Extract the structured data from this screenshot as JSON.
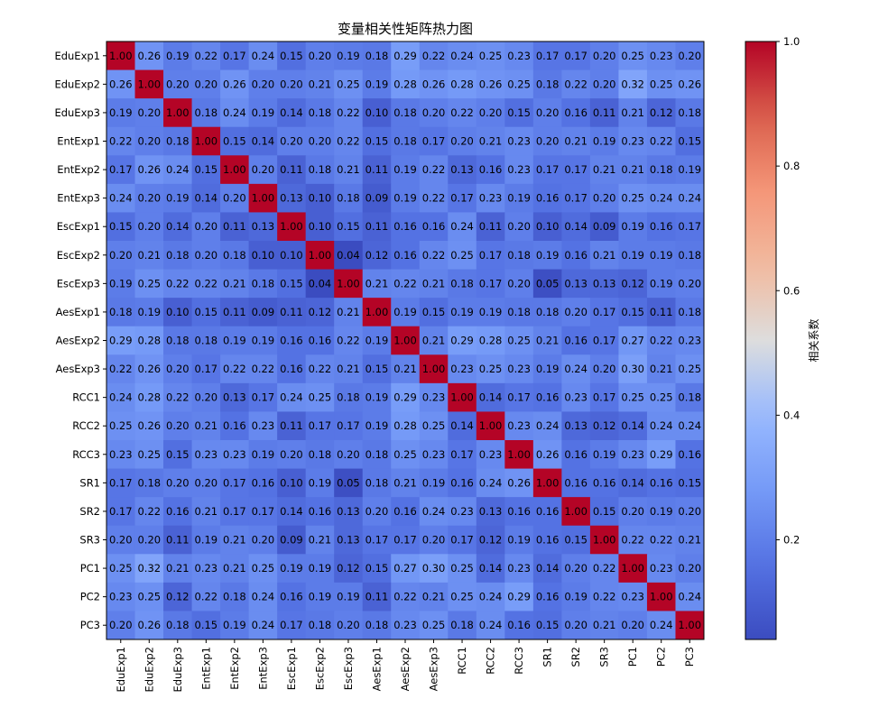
{
  "chart_data": {
    "type": "heatmap",
    "title": "变量相关性矩阵热力图",
    "variables": [
      "EduExp1",
      "EduExp2",
      "EduExp3",
      "EntExp1",
      "EntExp2",
      "EntExp3",
      "EscExp1",
      "EscExp2",
      "EscExp3",
      "AesExp1",
      "AesExp2",
      "AesExp3",
      "RCC1",
      "RCC2",
      "RCC3",
      "SR1",
      "SR2",
      "SR3",
      "PC1",
      "PC2",
      "PC3"
    ],
    "matrix": [
      [
        1.0,
        0.26,
        0.19,
        0.22,
        0.17,
        0.24,
        0.15,
        0.2,
        0.19,
        0.18,
        0.29,
        0.22,
        0.24,
        0.25,
        0.23,
        0.17,
        0.17,
        0.2,
        0.25,
        0.23,
        0.2
      ],
      [
        0.26,
        1.0,
        0.2,
        0.2,
        0.26,
        0.2,
        0.2,
        0.21,
        0.25,
        0.19,
        0.28,
        0.26,
        0.28,
        0.26,
        0.25,
        0.18,
        0.22,
        0.2,
        0.32,
        0.25,
        0.26
      ],
      [
        0.19,
        0.2,
        1.0,
        0.18,
        0.24,
        0.19,
        0.14,
        0.18,
        0.22,
        0.1,
        0.18,
        0.2,
        0.22,
        0.2,
        0.15,
        0.2,
        0.16,
        0.11,
        0.21,
        0.12,
        0.18
      ],
      [
        0.22,
        0.2,
        0.18,
        1.0,
        0.15,
        0.14,
        0.2,
        0.2,
        0.22,
        0.15,
        0.18,
        0.17,
        0.2,
        0.21,
        0.23,
        0.2,
        0.21,
        0.19,
        0.23,
        0.22,
        0.15
      ],
      [
        0.17,
        0.26,
        0.24,
        0.15,
        1.0,
        0.2,
        0.11,
        0.18,
        0.21,
        0.11,
        0.19,
        0.22,
        0.13,
        0.16,
        0.23,
        0.17,
        0.17,
        0.21,
        0.21,
        0.18,
        0.19
      ],
      [
        0.24,
        0.2,
        0.19,
        0.14,
        0.2,
        1.0,
        0.13,
        0.1,
        0.18,
        0.09,
        0.19,
        0.22,
        0.17,
        0.23,
        0.19,
        0.16,
        0.17,
        0.2,
        0.25,
        0.24,
        0.24
      ],
      [
        0.15,
        0.2,
        0.14,
        0.2,
        0.11,
        0.13,
        1.0,
        0.1,
        0.15,
        0.11,
        0.16,
        0.16,
        0.24,
        0.11,
        0.2,
        0.1,
        0.14,
        0.09,
        0.19,
        0.16,
        0.17
      ],
      [
        0.2,
        0.21,
        0.18,
        0.2,
        0.18,
        0.1,
        0.1,
        1.0,
        0.04,
        0.12,
        0.16,
        0.22,
        0.25,
        0.17,
        0.18,
        0.19,
        0.16,
        0.21,
        0.19,
        0.19,
        0.18
      ],
      [
        0.19,
        0.25,
        0.22,
        0.22,
        0.21,
        0.18,
        0.15,
        0.04,
        1.0,
        0.21,
        0.22,
        0.21,
        0.18,
        0.17,
        0.2,
        0.05,
        0.13,
        0.13,
        0.12,
        0.19,
        0.2
      ],
      [
        0.18,
        0.19,
        0.1,
        0.15,
        0.11,
        0.09,
        0.11,
        0.12,
        0.21,
        1.0,
        0.19,
        0.15,
        0.19,
        0.19,
        0.18,
        0.18,
        0.2,
        0.17,
        0.15,
        0.11,
        0.18
      ],
      [
        0.29,
        0.28,
        0.18,
        0.18,
        0.19,
        0.19,
        0.16,
        0.16,
        0.22,
        0.19,
        1.0,
        0.21,
        0.29,
        0.28,
        0.25,
        0.21,
        0.16,
        0.17,
        0.27,
        0.22,
        0.23
      ],
      [
        0.22,
        0.26,
        0.2,
        0.17,
        0.22,
        0.22,
        0.16,
        0.22,
        0.21,
        0.15,
        0.21,
        1.0,
        0.23,
        0.25,
        0.23,
        0.19,
        0.24,
        0.2,
        0.3,
        0.21,
        0.25
      ],
      [
        0.24,
        0.28,
        0.22,
        0.2,
        0.13,
        0.17,
        0.24,
        0.25,
        0.18,
        0.19,
        0.29,
        0.23,
        1.0,
        0.14,
        0.17,
        0.16,
        0.23,
        0.17,
        0.25,
        0.25,
        0.18
      ],
      [
        0.25,
        0.26,
        0.2,
        0.21,
        0.16,
        0.23,
        0.11,
        0.17,
        0.17,
        0.19,
        0.28,
        0.25,
        0.14,
        1.0,
        0.23,
        0.24,
        0.13,
        0.12,
        0.14,
        0.24,
        0.24
      ],
      [
        0.23,
        0.25,
        0.15,
        0.23,
        0.23,
        0.19,
        0.2,
        0.18,
        0.2,
        0.18,
        0.25,
        0.23,
        0.17,
        0.23,
        1.0,
        0.26,
        0.16,
        0.19,
        0.23,
        0.29,
        0.16
      ],
      [
        0.17,
        0.18,
        0.2,
        0.2,
        0.17,
        0.16,
        0.1,
        0.19,
        0.05,
        0.18,
        0.21,
        0.19,
        0.16,
        0.24,
        0.26,
        1.0,
        0.16,
        0.16,
        0.14,
        0.16,
        0.15
      ],
      [
        0.17,
        0.22,
        0.16,
        0.21,
        0.17,
        0.17,
        0.14,
        0.16,
        0.13,
        0.2,
        0.16,
        0.24,
        0.23,
        0.13,
        0.16,
        0.16,
        1.0,
        0.15,
        0.2,
        0.19,
        0.2
      ],
      [
        0.2,
        0.2,
        0.11,
        0.19,
        0.21,
        0.2,
        0.09,
        0.21,
        0.13,
        0.17,
        0.17,
        0.2,
        0.17,
        0.12,
        0.19,
        0.16,
        0.15,
        1.0,
        0.22,
        0.22,
        0.21
      ],
      [
        0.25,
        0.32,
        0.21,
        0.23,
        0.21,
        0.25,
        0.19,
        0.19,
        0.12,
        0.15,
        0.27,
        0.3,
        0.25,
        0.14,
        0.23,
        0.14,
        0.2,
        0.22,
        1.0,
        0.23,
        0.2
      ],
      [
        0.23,
        0.25,
        0.12,
        0.22,
        0.18,
        0.24,
        0.16,
        0.19,
        0.19,
        0.11,
        0.22,
        0.21,
        0.25,
        0.24,
        0.29,
        0.16,
        0.19,
        0.22,
        0.23,
        1.0,
        0.24
      ],
      [
        0.2,
        0.26,
        0.18,
        0.15,
        0.19,
        0.24,
        0.17,
        0.18,
        0.2,
        0.18,
        0.23,
        0.25,
        0.18,
        0.24,
        0.16,
        0.15,
        0.2,
        0.21,
        0.2,
        0.24,
        1.0
      ]
    ],
    "colorbar": {
      "label": "相关系数",
      "ticks": [
        0.2,
        0.4,
        0.6,
        0.8,
        1.0
      ],
      "tick_labels": [
        "0.2",
        "0.4",
        "0.6",
        "0.8",
        "1.0"
      ],
      "vmin": 0.04,
      "vmax": 1.0,
      "colormap": "coolwarm"
    },
    "value_format": "0.00",
    "legend": "colorbar-right"
  }
}
